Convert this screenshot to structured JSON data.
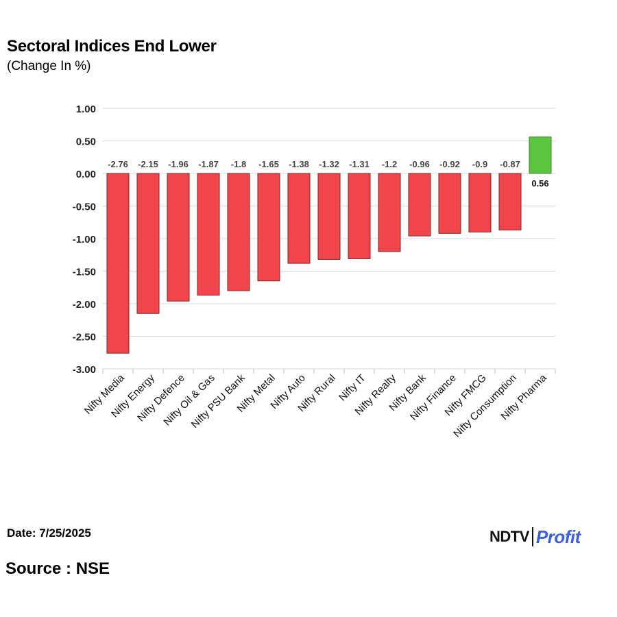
{
  "header": {
    "title": "Sectoral Indices End Lower",
    "subtitle": "(Change In %)"
  },
  "footer": {
    "date": "Date: 7/25/2025",
    "source": "Source : NSE",
    "logo_left": "NDTV",
    "logo_right": "Profit"
  },
  "colors": {
    "negative": "#f2444b",
    "positive": "#5cc540",
    "grid": "#d9d9d9"
  },
  "chart_data": {
    "type": "bar",
    "title": "Sectoral Indices End Lower",
    "subtitle": "(Change In %)",
    "categories": [
      "Nifty Media",
      "Nifty Energy",
      "Nifty Defence",
      "Nifty Oil & Gas",
      "Nifty PSU Bank",
      "Nifty Metal",
      "Nifty Auto",
      "Nifty Rural",
      "Nifty IT",
      "Nifty Realty",
      "Nifty Bank",
      "Nifty Finance",
      "Nifty FMCG",
      "Nifty Consumption",
      "Nifty Pharma"
    ],
    "values": [
      -2.76,
      -2.15,
      -1.96,
      -1.87,
      -1.8,
      -1.65,
      -1.38,
      -1.32,
      -1.31,
      -1.2,
      -0.96,
      -0.92,
      -0.9,
      -0.87,
      0.56
    ],
    "value_labels": [
      "-2.76",
      "-2.15",
      "-1.96",
      "-1.87",
      "-1.8",
      "-1.65",
      "-1.38",
      "-1.32",
      "-1.31",
      "-1.2",
      "-0.96",
      "-0.92",
      "-0.9",
      "-0.87",
      "0.56"
    ],
    "yticks": [
      "1.00",
      "0.50",
      "0.00",
      "-0.50",
      "-1.00",
      "-1.50",
      "-2.00",
      "-2.50",
      "-3.00"
    ],
    "ylim": [
      -3,
      1
    ],
    "grid": true,
    "xlabel": "",
    "ylabel": ""
  }
}
